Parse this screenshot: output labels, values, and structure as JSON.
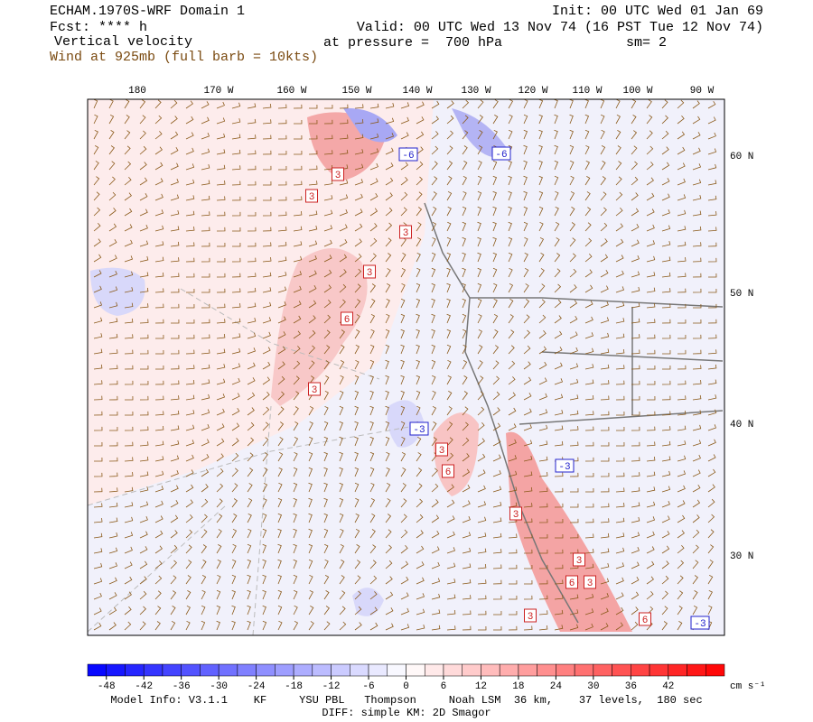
{
  "header": {
    "title": "ECHAM.1970S-WRF Domain 1",
    "forecast": "Fcst: **** h",
    "field": "Vertical velocity",
    "wind": "Wind at 925mb (full barb = 10kts)",
    "init": "Init: 00 UTC Wed 01 Jan 69",
    "valid": "Valid: 00 UTC Wed 13 Nov 74 (16 PST Tue 12 Nov 74)",
    "pressure": "at pressure =  700 hPa",
    "smoothing": "sm= 2"
  },
  "map": {
    "longitudes": [
      "180",
      "170 W",
      "160 W",
      "150 W",
      "140 W",
      "130 W",
      "120 W",
      "110 W",
      "100 W",
      "90 W"
    ],
    "latitudes": [
      "60 N",
      "50 N",
      "40 N",
      "30 N"
    ],
    "contour_labels": [
      3,
      3,
      3,
      3,
      6,
      3,
      3,
      6,
      3,
      3,
      6,
      3,
      3,
      6,
      -6,
      -6,
      -3,
      -3,
      -3
    ]
  },
  "colorbar": {
    "range": [
      -51,
      51
    ],
    "ticks": [
      -48,
      -42,
      -36,
      -30,
      -24,
      -18,
      -12,
      -6,
      0,
      6,
      12,
      18,
      24,
      30,
      36,
      42
    ],
    "unit": "cm s⁻¹"
  },
  "footer": {
    "model": "Model Info: V3.1.1    KF     YSU PBL   Thompson     Noah LSM  36 km,    37 levels,  180 sec",
    "diff": "DIFF: simple KM: 2D Smagor"
  }
}
